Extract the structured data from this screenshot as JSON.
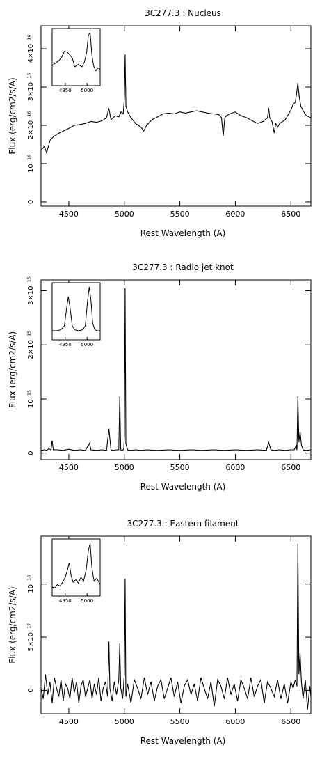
{
  "chart_data": [
    {
      "type": "line",
      "title": "3C277.3 :  Nucleus",
      "xlabel": "Rest Wavelength (A)",
      "ylabel": "Flux (erg/cm2/s/A)",
      "xlim": [
        4250,
        6680
      ],
      "ylim": [
        -1.1e-17,
        4.6e-16
      ],
      "x_ticks": [
        4500,
        5000,
        5500,
        6000,
        6500
      ],
      "x_tick_labels": [
        "4500",
        "5000",
        "5500",
        "6000",
        "6500"
      ],
      "y_ticks": [
        0,
        1e-16,
        2e-16,
        3e-16,
        4e-16
      ],
      "y_tick_labels": [
        "0",
        "10⁻¹⁶",
        "2×10⁻¹⁶",
        "3×10⁻¹⁶",
        "4×10⁻¹⁶"
      ],
      "series": [
        {
          "x": [
            4250,
            4280,
            4300,
            4330,
            4360,
            4400,
            4450,
            4500,
            4550,
            4600,
            4650,
            4700,
            4750,
            4800,
            4840,
            4860,
            4880,
            4920,
            4950,
            4970,
            4990,
            5000,
            5007,
            5015,
            5030,
            5060,
            5100,
            5150,
            5175,
            5200,
            5250,
            5300,
            5350,
            5400,
            5450,
            5500,
            5550,
            5600,
            5650,
            5700,
            5750,
            5800,
            5850,
            5875,
            5890,
            5905,
            5920,
            5950,
            6000,
            6050,
            6100,
            6150,
            6200,
            6250,
            6290,
            6300,
            6310,
            6330,
            6350,
            6364,
            6380,
            6400,
            6450,
            6480,
            6500,
            6520,
            6540,
            6550,
            6563,
            6575,
            6590,
            6610,
            6640,
            6680
          ],
          "y": [
            1.35e-16,
            1.45e-16,
            1.28e-16,
            1.6e-16,
            1.7e-16,
            1.78e-16,
            1.85e-16,
            1.92e-16,
            2e-16,
            2.02e-16,
            2.05e-16,
            2.1e-16,
            2.08e-16,
            2.12e-16,
            2.2e-16,
            2.45e-16,
            2.15e-16,
            2.25e-16,
            2.22e-16,
            2.35e-16,
            2.3e-16,
            2.7e-16,
            3.85e-16,
            2.5e-16,
            2.35e-16,
            2.2e-16,
            2.05e-16,
            1.95e-16,
            1.85e-16,
            2e-16,
            2.15e-16,
            2.22e-16,
            2.3e-16,
            2.32e-16,
            2.3e-16,
            2.35e-16,
            2.32e-16,
            2.35e-16,
            2.38e-16,
            2.35e-16,
            2.32e-16,
            2.3e-16,
            2.28e-16,
            2.2e-16,
            1.72e-16,
            2.2e-16,
            2.25e-16,
            2.3e-16,
            2.35e-16,
            2.25e-16,
            2.2e-16,
            2.12e-16,
            2.05e-16,
            2.1e-16,
            2.2e-16,
            2.45e-16,
            2.2e-16,
            2.1e-16,
            1.8e-16,
            2.05e-16,
            1.95e-16,
            2.05e-16,
            2.15e-16,
            2.3e-16,
            2.4e-16,
            2.55e-16,
            2.6e-16,
            2.8e-16,
            3.1e-16,
            2.75e-16,
            2.5e-16,
            2.38e-16,
            2.25e-16,
            2.2e-16
          ]
        }
      ],
      "inset": {
        "xlim": [
          4920,
          5030
        ],
        "x_ticks": [
          4950,
          5000
        ],
        "x_tick_labels": [
          "4950",
          "5000"
        ],
        "series": [
          {
            "x": [
              4920,
              4928,
              4935,
              4942,
              4948,
              4955,
              4960,
              4966,
              4972,
              4980,
              4988,
              4994,
              4999,
              5003,
              5007,
              5011,
              5015,
              5020,
              5025,
              5030
            ],
            "y": [
              0.32,
              0.38,
              0.42,
              0.5,
              0.62,
              0.6,
              0.55,
              0.48,
              0.3,
              0.35,
              0.3,
              0.4,
              0.6,
              0.95,
              1.0,
              0.55,
              0.32,
              0.22,
              0.28,
              0.25
            ]
          }
        ]
      }
    },
    {
      "type": "line",
      "title": "3C277.3 :  Radio jet knot",
      "xlabel": "Rest Wavelength (A)",
      "ylabel": "Flux (erg/cm2/s/A)",
      "xlim": [
        4250,
        6680
      ],
      "ylim": [
        -1.2e-16,
        3.2e-15
      ],
      "x_ticks": [
        4500,
        5000,
        5500,
        6000,
        6500
      ],
      "x_tick_labels": [
        "4500",
        "5000",
        "5500",
        "6000",
        "6500"
      ],
      "y_ticks": [
        0,
        1e-15,
        2e-15,
        3e-15
      ],
      "y_tick_labels": [
        "0",
        "10⁻¹⁵",
        "2×10⁻¹⁵",
        "3×10⁻¹⁵"
      ],
      "series": [
        {
          "x": [
            4250,
            4280,
            4300,
            4320,
            4340,
            4350,
            4360,
            4400,
            4450,
            4500,
            4550,
            4600,
            4650,
            4686,
            4700,
            4750,
            4800,
            4840,
            4861,
            4880,
            4900,
            4930,
            4950,
            4959,
            4968,
            4985,
            4995,
            5000,
            5007,
            5014,
            5030,
            5060,
            5100,
            5150,
            5200,
            5300,
            5400,
            5500,
            5600,
            5700,
            5800,
            5900,
            6000,
            6100,
            6200,
            6280,
            6300,
            6320,
            6350,
            6400,
            6450,
            6500,
            6530,
            6548,
            6555,
            6563,
            6572,
            6583,
            6595,
            6610,
            6640,
            6680
          ],
          "y": [
            5e-17,
            6e-17,
            5e-17,
            8e-17,
            6e-17,
            2.3e-16,
            6e-17,
            6e-17,
            5e-17,
            7e-17,
            5e-17,
            6e-17,
            5e-17,
            1.8e-16,
            6e-17,
            5e-17,
            6e-17,
            5e-17,
            4.5e-16,
            6e-17,
            5e-17,
            6e-17,
            6e-17,
            1.05e-15,
            6e-17,
            5e-17,
            8e-17,
            3e-16,
            3.05e-15,
            1.8e-16,
            6e-17,
            5e-17,
            6e-17,
            5e-17,
            6e-17,
            5e-17,
            6e-17,
            5e-17,
            6e-17,
            5e-17,
            6e-17,
            5e-17,
            6e-17,
            5e-17,
            6e-17,
            5e-17,
            2e-16,
            6e-17,
            5e-17,
            6e-17,
            5e-17,
            6e-17,
            6e-17,
            1.4e-16,
            6e-17,
            1.05e-15,
            2e-16,
            4e-16,
            1.5e-16,
            6e-17,
            5e-17,
            6e-17
          ]
        }
      ],
      "inset": {
        "xlim": [
          4920,
          5030
        ],
        "x_ticks": [
          4950,
          5000
        ],
        "x_tick_labels": [
          "4950",
          "5000"
        ],
        "series": [
          {
            "x": [
              4920,
              4930,
              4940,
              4948,
              4953,
              4957,
              4961,
              4966,
              4972,
              4980,
              4990,
              4996,
              5001,
              5005,
              5009,
              5013,
              5018,
              5024,
              5030
            ],
            "y": [
              0.1,
              0.1,
              0.12,
              0.2,
              0.55,
              0.8,
              0.58,
              0.2,
              0.12,
              0.1,
              0.12,
              0.2,
              0.7,
              1.0,
              0.72,
              0.25,
              0.12,
              0.1,
              0.1
            ]
          }
        ]
      }
    },
    {
      "type": "line",
      "title": "3C277.3 :  Eastern filament",
      "xlabel": "Rest Wavelength (A)",
      "ylabel": "Flux (erg/cm2/s/A)",
      "xlim": [
        4250,
        6680
      ],
      "ylim": [
        -2.2e-17,
        1.45e-16
      ],
      "x_ticks": [
        4500,
        5000,
        5500,
        6000,
        6500
      ],
      "x_tick_labels": [
        "4500",
        "5000",
        "5500",
        "6000",
        "6500"
      ],
      "y_ticks": [
        0,
        5e-17,
        1e-16
      ],
      "y_tick_labels": [
        "0",
        "5×10⁻¹⁷",
        "10⁻¹⁶"
      ],
      "series": [
        {
          "x": [
            4250,
            4270,
            4290,
            4310,
            4330,
            4350,
            4370,
            4390,
            4410,
            4430,
            4450,
            4470,
            4490,
            4510,
            4530,
            4550,
            4570,
            4590,
            4610,
            4630,
            4650,
            4670,
            4690,
            4710,
            4730,
            4750,
            4770,
            4790,
            4810,
            4830,
            4850,
            4861,
            4870,
            4890,
            4910,
            4930,
            4950,
            4959,
            4968,
            4985,
            4995,
            5000,
            5007,
            5014,
            5030,
            5060,
            5090,
            5120,
            5150,
            5180,
            5210,
            5240,
            5270,
            5300,
            5330,
            5360,
            5390,
            5420,
            5450,
            5480,
            5510,
            5540,
            5570,
            5600,
            5630,
            5660,
            5690,
            5720,
            5750,
            5780,
            5810,
            5840,
            5870,
            5900,
            5930,
            5960,
            5990,
            6020,
            6050,
            6080,
            6110,
            6140,
            6170,
            6200,
            6230,
            6260,
            6290,
            6320,
            6350,
            6380,
            6410,
            6440,
            6470,
            6500,
            6520,
            6540,
            6555,
            6563,
            6572,
            6583,
            6595,
            6610,
            6630,
            6650,
            6670,
            6680
          ],
          "y": [
            2e-18,
            -8e-18,
            1.5e-17,
            -4e-18,
            8e-18,
            -1.2e-17,
            1.2e-17,
            2e-18,
            -6e-18,
            1e-17,
            -1e-17,
            6e-18,
            2e-18,
            -8e-18,
            1.2e-17,
            -2e-18,
            8e-18,
            -1.2e-17,
            4e-18,
            1e-17,
            -6e-18,
            2e-18,
            1e-17,
            -8e-18,
            6e-18,
            -4e-18,
            1.2e-17,
            -1e-17,
            2e-18,
            8e-18,
            -6e-18,
            4.6e-17,
            2e-18,
            -1e-17,
            8e-18,
            -4e-18,
            1e-17,
            4.4e-17,
            2e-18,
            -8e-18,
            8e-18,
            1.5e-17,
            1.05e-16,
            -6e-18,
            6e-18,
            -1.2e-17,
            1e-17,
            2e-18,
            -8e-18,
            1.2e-17,
            -4e-18,
            8e-18,
            -1e-17,
            4e-18,
            1e-17,
            -8e-18,
            2e-18,
            1.2e-17,
            -6e-18,
            8e-18,
            -1.2e-17,
            4e-18,
            1e-17,
            -4e-18,
            6e-18,
            -1e-17,
            1.2e-17,
            2e-18,
            -8e-18,
            8e-18,
            -1.5e-17,
            1e-17,
            4e-18,
            -8e-18,
            1.2e-17,
            -4e-18,
            6e-18,
            -1e-17,
            1e-17,
            2e-18,
            -8e-18,
            1.2e-17,
            -6e-18,
            4e-18,
            1e-17,
            -1.2e-17,
            8e-18,
            2e-18,
            -6e-18,
            1e-17,
            -8e-18,
            6e-18,
            -1.2e-17,
            8e-18,
            2e-18,
            1e-17,
            4e-18,
            1.38e-16,
            1.5e-17,
            3.5e-17,
            8e-18,
            -8e-18,
            1e-17,
            -1.8e-17,
            4e-18,
            -6e-18
          ]
        }
      ],
      "inset": {
        "xlim": [
          4920,
          5030
        ],
        "x_ticks": [
          4950,
          5000
        ],
        "x_tick_labels": [
          "4950",
          "5000"
        ],
        "series": [
          {
            "x": [
              4920,
              4926,
              4932,
              4938,
              4944,
              4950,
              4955,
              4959,
              4963,
              4968,
              4974,
              4980,
              4986,
              4992,
              4998,
              5003,
              5007,
              5011,
              5016,
              5022,
              5030
            ],
            "y": [
              0.1,
              0.08,
              0.15,
              0.12,
              0.2,
              0.3,
              0.45,
              0.6,
              0.35,
              0.2,
              0.25,
              0.18,
              0.3,
              0.22,
              0.45,
              0.85,
              1.0,
              0.5,
              0.22,
              0.28,
              0.15
            ]
          }
        ]
      }
    }
  ]
}
